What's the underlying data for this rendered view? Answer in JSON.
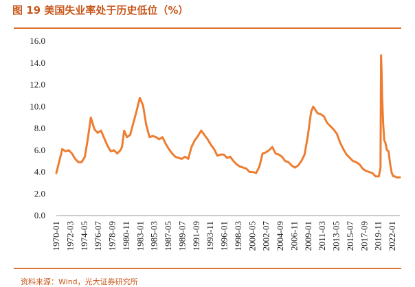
{
  "figure": {
    "title": "图 19 美国失业率处于历史低位（%）",
    "source": "资料来源：Wind，光大证券研究所"
  },
  "colors": {
    "series": "#ed7d31",
    "accent": "#c8571b",
    "rule": "#d9712f"
  },
  "chart_data": {
    "type": "line",
    "title": "",
    "xlabel": "",
    "ylabel": "",
    "ylim": [
      0,
      16
    ],
    "grid": false,
    "legend": "none",
    "y_ticks": [
      "0.0",
      "2.0",
      "4.0",
      "6.0",
      "8.0",
      "10.0",
      "12.0",
      "14.0",
      "16.0"
    ],
    "x_ticks": [
      "1970-01",
      "1972-03",
      "1974-05",
      "1976-07",
      "1978-09",
      "1980-11",
      "1983-01",
      "1985-03",
      "1987-05",
      "1989-07",
      "1991-09",
      "1993-11",
      "1996-01",
      "1998-03",
      "2000-05",
      "2002-07",
      "2004-09",
      "2006-11",
      "2009-01",
      "2011-03",
      "2013-05",
      "2015-07",
      "2017-09",
      "2019-11",
      "2022-01"
    ],
    "series": [
      {
        "x": [
          "1970-01",
          "1970-06",
          "1970-12",
          "1971-06",
          "1971-12",
          "1972-06",
          "1972-12",
          "1973-06",
          "1973-12",
          "1974-06",
          "1974-12",
          "1975-05",
          "1975-12",
          "1976-06",
          "1976-12",
          "1977-06",
          "1977-12",
          "1978-06",
          "1978-12",
          "1979-06",
          "1979-12",
          "1980-03",
          "1980-07",
          "1980-12",
          "1981-06",
          "1981-12",
          "1982-06",
          "1982-12",
          "1983-06",
          "1983-12",
          "1984-06",
          "1984-12",
          "1985-06",
          "1985-12",
          "1986-06",
          "1986-12",
          "1987-06",
          "1987-12",
          "1988-06",
          "1988-12",
          "1989-06",
          "1989-12",
          "1990-06",
          "1990-12",
          "1991-06",
          "1991-12",
          "1992-06",
          "1992-12",
          "1993-06",
          "1993-12",
          "1994-06",
          "1994-12",
          "1995-06",
          "1995-12",
          "1996-06",
          "1996-12",
          "1997-06",
          "1997-12",
          "1998-06",
          "1998-12",
          "1999-06",
          "1999-12",
          "2000-06",
          "2000-12",
          "2001-06",
          "2001-12",
          "2002-06",
          "2002-12",
          "2003-06",
          "2003-12",
          "2004-06",
          "2004-12",
          "2005-06",
          "2005-12",
          "2006-06",
          "2006-12",
          "2007-06",
          "2007-12",
          "2008-06",
          "2008-12",
          "2009-06",
          "2009-10",
          "2010-06",
          "2010-12",
          "2011-06",
          "2011-12",
          "2012-06",
          "2012-12",
          "2013-06",
          "2013-12",
          "2014-06",
          "2014-12",
          "2015-06",
          "2015-12",
          "2016-06",
          "2016-12",
          "2017-06",
          "2017-12",
          "2018-06",
          "2018-12",
          "2019-06",
          "2019-12",
          "2020-03",
          "2020-04",
          "2020-05",
          "2020-06",
          "2020-08",
          "2020-10",
          "2020-12",
          "2021-03",
          "2021-06",
          "2021-09",
          "2021-12",
          "2022-03",
          "2022-06",
          "2022-09",
          "2022-12",
          "2023-03"
        ],
        "values": [
          3.9,
          4.9,
          6.1,
          5.9,
          6.0,
          5.7,
          5.2,
          4.9,
          4.9,
          5.4,
          7.2,
          9.0,
          7.9,
          7.6,
          7.8,
          7.1,
          6.4,
          5.9,
          6.0,
          5.7,
          6.0,
          6.3,
          7.8,
          7.2,
          7.4,
          8.5,
          9.6,
          10.8,
          10.1,
          8.3,
          7.2,
          7.3,
          7.2,
          7.0,
          7.2,
          6.6,
          6.1,
          5.7,
          5.4,
          5.3,
          5.2,
          5.4,
          5.2,
          6.3,
          6.9,
          7.3,
          7.8,
          7.4,
          7.0,
          6.5,
          6.1,
          5.5,
          5.6,
          5.6,
          5.3,
          5.4,
          5.0,
          4.7,
          4.5,
          4.4,
          4.3,
          4.0,
          4.0,
          3.9,
          4.5,
          5.7,
          5.8,
          6.0,
          6.3,
          5.7,
          5.6,
          5.4,
          5.0,
          4.9,
          4.6,
          4.4,
          4.6,
          5.0,
          5.6,
          7.3,
          9.5,
          10.0,
          9.4,
          9.3,
          9.1,
          8.5,
          8.2,
          7.9,
          7.5,
          6.7,
          6.1,
          5.6,
          5.3,
          5.0,
          4.9,
          4.7,
          4.3,
          4.1,
          4.0,
          3.9,
          3.6,
          3.6,
          4.4,
          14.7,
          13.2,
          11.0,
          8.4,
          6.9,
          6.7,
          6.0,
          5.9,
          4.7,
          3.9,
          3.6,
          3.6,
          3.5,
          3.5,
          3.5
        ]
      }
    ]
  }
}
